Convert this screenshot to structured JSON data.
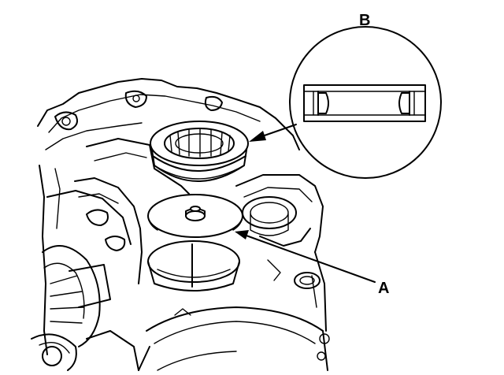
{
  "callouts": {
    "a": "A",
    "b": "B"
  },
  "colors": {
    "line": "#000000",
    "background": "#ffffff"
  }
}
